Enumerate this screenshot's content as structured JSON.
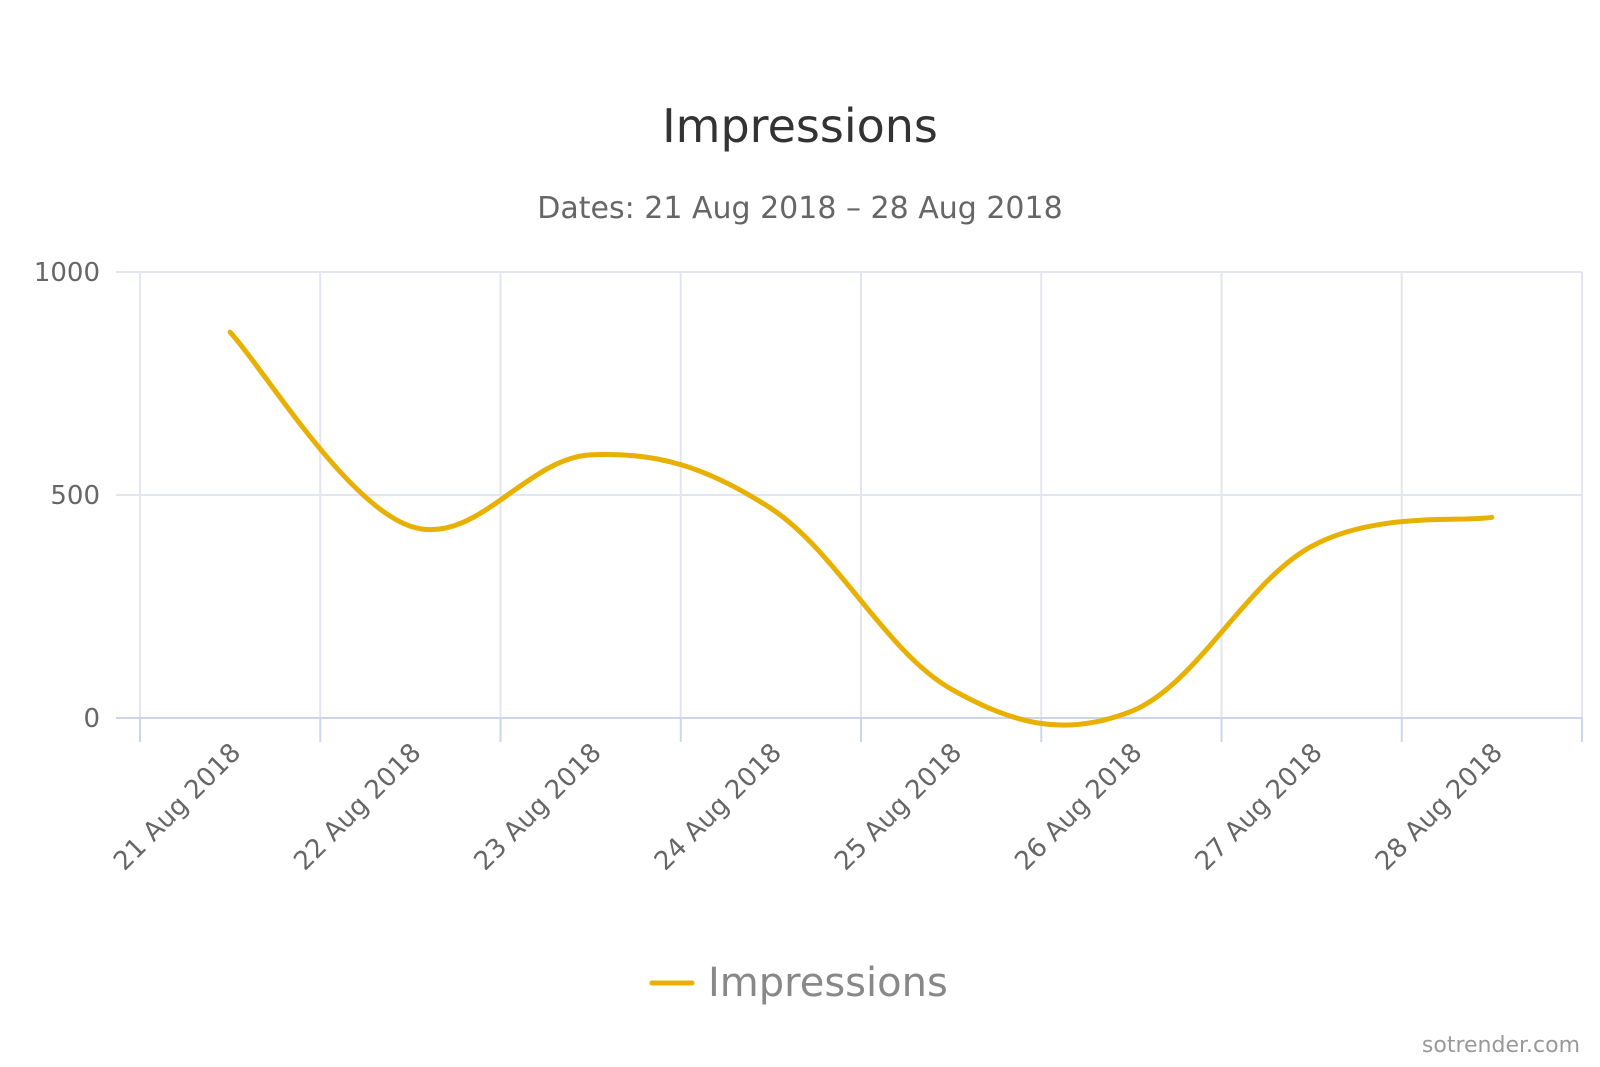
{
  "chart_data": {
    "type": "line",
    "title": "Impressions",
    "subtitle": "Dates: 21 Aug 2018 – 28 Aug 2018",
    "categories": [
      "21 Aug 2018",
      "22 Aug 2018",
      "23 Aug 2018",
      "24 Aug 2018",
      "25 Aug 2018",
      "26 Aug 2018",
      "27 Aug 2018",
      "28 Aug 2018"
    ],
    "series": [
      {
        "name": "Impressions",
        "values": [
          865,
          430,
          590,
          470,
          65,
          15,
          385,
          450
        ],
        "color": "#e8b000"
      }
    ],
    "ylim": [
      0,
      1000
    ],
    "yticks": [
      0,
      500,
      1000
    ],
    "xlabel": "",
    "ylabel": "",
    "grid": true,
    "legend": "bottom-center",
    "credit": "sotrender.com"
  }
}
